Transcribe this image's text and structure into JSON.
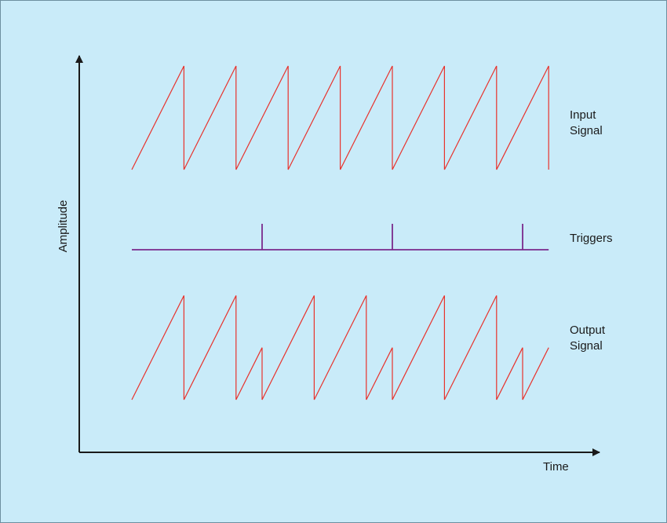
{
  "axes": {
    "x_label": "Time",
    "y_label": "Amplitude"
  },
  "colors": {
    "background": "#c9ebf9",
    "border": "#6d8fa0",
    "axis": "#1a1a1a",
    "signal": "#e8322c",
    "trigger": "#7a2a8c"
  },
  "signals": {
    "input": {
      "label_line1": "Input",
      "label_line2": "Signal",
      "period": 2,
      "teeth": 8
    },
    "triggers": {
      "label": "Triggers",
      "times": [
        5,
        10,
        15
      ]
    },
    "output": {
      "label_line1": "Output",
      "label_line2": "Signal",
      "reset_times": [
        2,
        4,
        5,
        7,
        9,
        10,
        12,
        14,
        15
      ],
      "end_time": 16
    }
  }
}
